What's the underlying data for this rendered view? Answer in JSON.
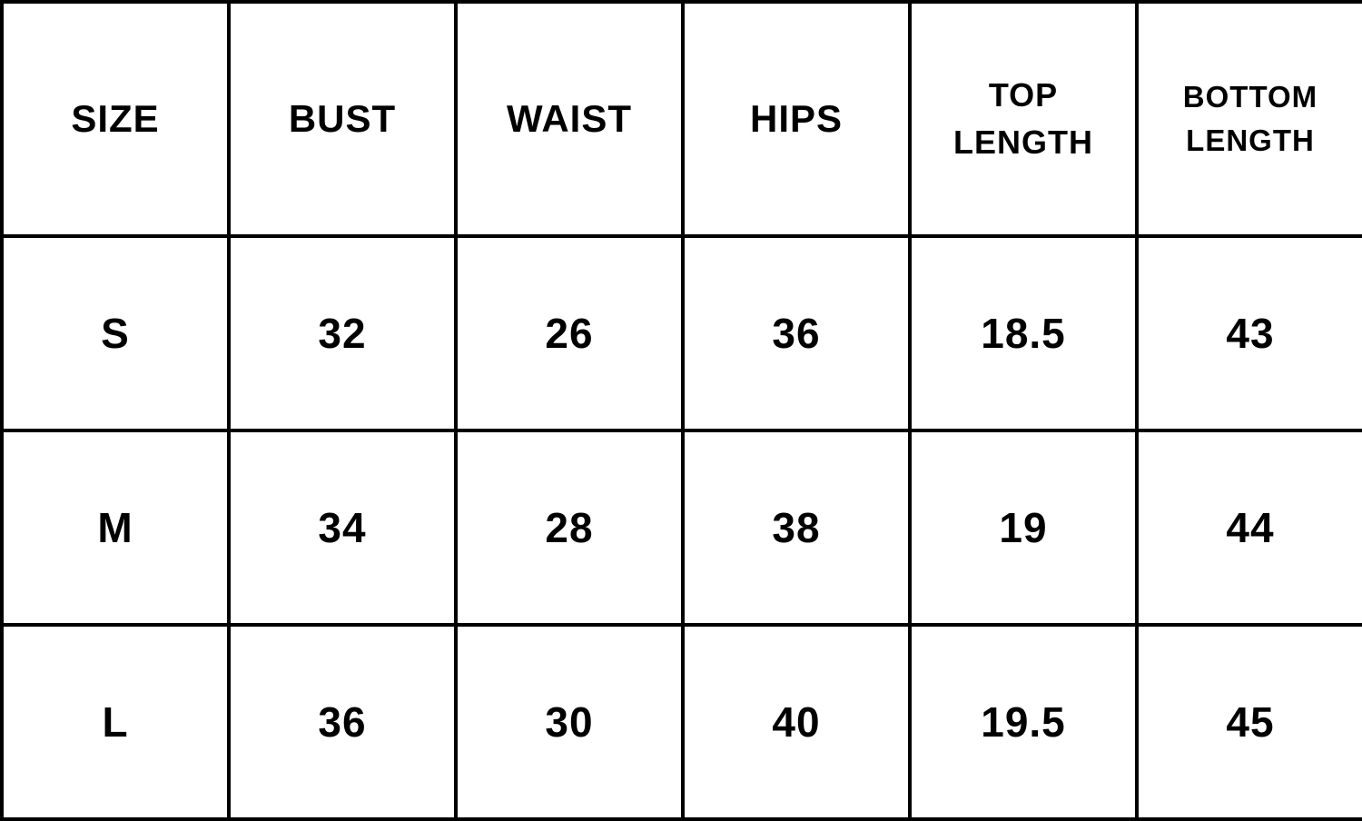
{
  "chart_data": {
    "type": "table",
    "columns": [
      "SIZE",
      "BUST",
      "WAIST",
      "HIPS",
      "TOP LENGTH",
      "BOTTOM LENGTH"
    ],
    "rows": [
      [
        "S",
        "32",
        "26",
        "36",
        "18.5",
        "43"
      ],
      [
        "M",
        "34",
        "28",
        "38",
        "19",
        "44"
      ],
      [
        "L",
        "36",
        "30",
        "40",
        "19.5",
        "45"
      ]
    ],
    "layout": {
      "grid": "on",
      "columns_count": 6,
      "rows_count": 3
    }
  },
  "colors": {
    "background": "#ffffff",
    "border": "#000000",
    "text": "#000000"
  }
}
